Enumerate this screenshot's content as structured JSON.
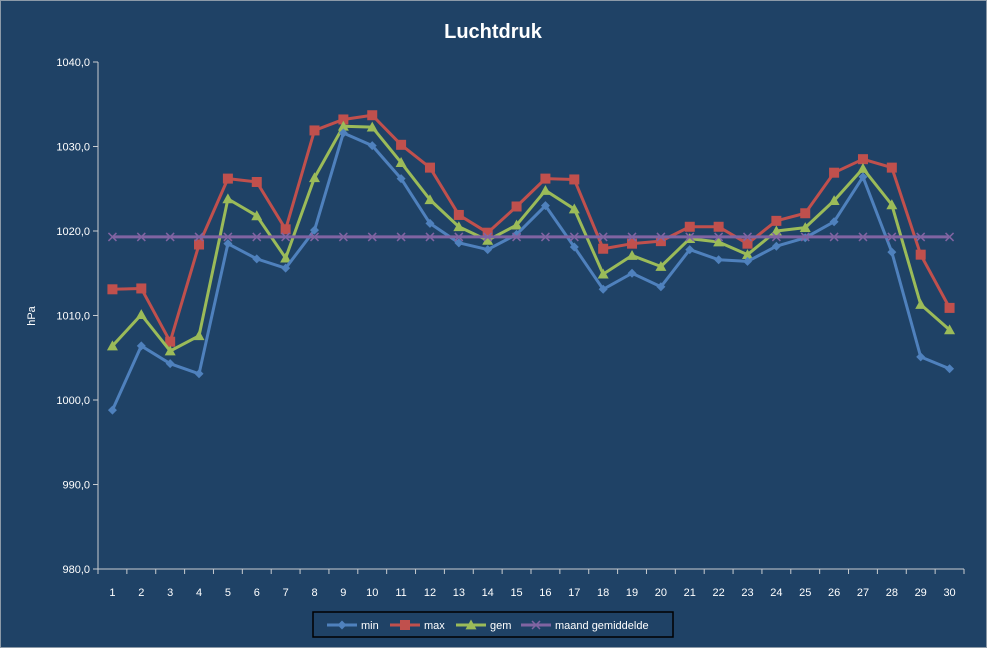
{
  "chart_data": {
    "type": "line",
    "title": "Luchtdruk",
    "xlabel": "",
    "ylabel": "hPa",
    "ylim": [
      980,
      1040
    ],
    "y_ticks": [
      "980,0",
      "990,0",
      "1000,0",
      "1010,0",
      "1020,0",
      "1030,0",
      "1040,0"
    ],
    "grid": false,
    "legend_position": "bottom",
    "categories": [
      "1",
      "2",
      "3",
      "4",
      "5",
      "6",
      "7",
      "8",
      "9",
      "10",
      "11",
      "12",
      "13",
      "14",
      "15",
      "16",
      "17",
      "18",
      "19",
      "20",
      "21",
      "22",
      "23",
      "24",
      "25",
      "26",
      "27",
      "28",
      "29",
      "30"
    ],
    "series": [
      {
        "name": "min",
        "color": "#4f81bd",
        "marker": "diamond",
        "values": [
          998.8,
          1006.4,
          1004.3,
          1003.1,
          1018.5,
          1016.7,
          1015.6,
          1020.1,
          1031.6,
          1030.1,
          1026.2,
          1020.9,
          1018.6,
          1017.8,
          1019.6,
          1023.0,
          1018.1,
          1013.1,
          1015.0,
          1013.4,
          1017.8,
          1016.6,
          1016.4,
          1018.2,
          1019.2,
          1021.1,
          1026.4,
          1017.5,
          1005.1,
          1003.7
        ]
      },
      {
        "name": "max",
        "color": "#c0504d",
        "marker": "square",
        "values": [
          1013.1,
          1013.2,
          1006.9,
          1018.4,
          1026.2,
          1025.8,
          1020.2,
          1031.9,
          1033.2,
          1033.7,
          1030.2,
          1027.5,
          1021.9,
          1019.8,
          1022.9,
          1026.2,
          1026.1,
          1017.9,
          1018.5,
          1018.8,
          1020.5,
          1020.5,
          1018.5,
          1021.2,
          1022.1,
          1026.9,
          1028.5,
          1027.5,
          1017.2,
          1010.9
        ]
      },
      {
        "name": "gem",
        "color": "#9bbb59",
        "marker": "triangle",
        "values": [
          1006.4,
          1010.1,
          1005.8,
          1007.6,
          1023.8,
          1021.8,
          1016.8,
          1026.3,
          1032.4,
          1032.3,
          1028.1,
          1023.7,
          1020.5,
          1018.9,
          1020.7,
          1024.8,
          1022.6,
          1014.9,
          1017.1,
          1015.8,
          1019.1,
          1018.7,
          1017.2,
          1020.0,
          1020.4,
          1023.6,
          1027.4,
          1023.1,
          1011.3,
          1008.3
        ]
      },
      {
        "name": "maand gemiddelde",
        "color": "#8064a2",
        "marker": "x",
        "values": [
          1019.3,
          1019.3,
          1019.3,
          1019.3,
          1019.3,
          1019.3,
          1019.3,
          1019.3,
          1019.3,
          1019.3,
          1019.3,
          1019.3,
          1019.3,
          1019.3,
          1019.3,
          1019.3,
          1019.3,
          1019.3,
          1019.3,
          1019.3,
          1019.3,
          1019.3,
          1019.3,
          1019.3,
          1019.3,
          1019.3,
          1019.3,
          1019.3,
          1019.3,
          1019.3
        ]
      }
    ]
  }
}
